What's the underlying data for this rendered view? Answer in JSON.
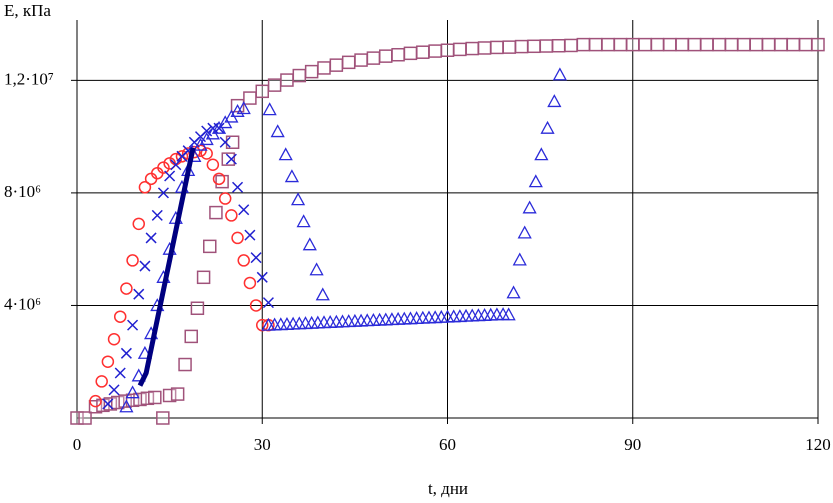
{
  "chart_data": {
    "type": "scatter",
    "x_label": "t, дни",
    "y_label": "E, кПа",
    "xlim": [
      0,
      120
    ],
    "xticks": [
      0,
      30,
      60,
      90,
      120
    ],
    "ylim": [
      0,
      14500000
    ],
    "yticks": [
      {
        "value": 4000000,
        "label": "4·10⁶"
      },
      {
        "value": 8000000,
        "label": "8·10⁶"
      },
      {
        "value": 12000000,
        "label": "1,2·10⁷"
      }
    ],
    "grid": true,
    "series": [
      {
        "marker": "square",
        "color": "#a0527a",
        "x": [
          0,
          1.3,
          3,
          4.2,
          5.4,
          6.6,
          7.8,
          9,
          10.2,
          11.4,
          12.6,
          13.9,
          15,
          16.3,
          17.5,
          18.5,
          19.5,
          20.5,
          21.5,
          22.5,
          23.5,
          24.5,
          25.2,
          26,
          28,
          30,
          32,
          34,
          36,
          38,
          40,
          42,
          44,
          46,
          48,
          50,
          52,
          54,
          56,
          58,
          60,
          62,
          64,
          66,
          68,
          70,
          72,
          74,
          76,
          78,
          80,
          82,
          84,
          86,
          88,
          90,
          92,
          94,
          96,
          98,
          100,
          102,
          104,
          106,
          108,
          110,
          112,
          114,
          116,
          118,
          120
        ],
        "values": [
          0,
          0,
          400000,
          450000,
          500000,
          550000,
          600000,
          630000,
          660000,
          700000,
          730000,
          0,
          800000,
          850000,
          1900000,
          2900000,
          3900000,
          5000000,
          6100000,
          7300000,
          8400000,
          9200000,
          9800000,
          11100000,
          11370000,
          11610000,
          11830000,
          12010000,
          12170000,
          12310000,
          12440000,
          12540000,
          12640000,
          12720000,
          12790000,
          12860000,
          12910000,
          12960000,
          13000000,
          13040000,
          13070000,
          13100000,
          13130000,
          13150000,
          13170000,
          13180000,
          13200000,
          13210000,
          13220000,
          13230000,
          13240000,
          13270000,
          13270000,
          13270000,
          13270000,
          13270000,
          13270000,
          13270000,
          13270000,
          13270000,
          13270000,
          13270000,
          13270000,
          13270000,
          13270000,
          13270000,
          13270000,
          13270000,
          13270000,
          13270000,
          13270000
        ]
      },
      {
        "marker": "circle",
        "color": "#ff3030",
        "x": [
          3,
          4,
          5,
          6,
          7,
          8,
          9,
          10,
          11,
          12,
          13,
          14,
          15,
          16,
          17,
          18,
          19,
          20,
          21,
          22,
          23,
          24,
          25,
          26,
          27,
          28,
          29,
          30,
          31
        ],
        "values": [
          600000,
          1300000,
          2000000,
          2800000,
          3600000,
          4600000,
          5600000,
          6900000,
          8200000,
          8500000,
          8700000,
          8900000,
          9050000,
          9200000,
          9300000,
          9400000,
          9450000,
          9500000,
          9400000,
          9000000,
          8500000,
          7800000,
          7200000,
          6400000,
          5600000,
          4800000,
          4000000,
          3300000,
          3300000
        ]
      },
      {
        "marker": "x",
        "color": "#2020d0",
        "x": [
          5,
          6,
          7,
          8,
          9,
          10,
          11,
          12,
          13,
          14,
          15,
          16,
          17,
          18,
          19,
          20,
          21,
          22,
          23,
          24,
          25,
          26,
          27,
          28,
          29,
          30,
          31
        ],
        "values": [
          500000,
          1000000,
          1600000,
          2300000,
          3300000,
          4400000,
          5400000,
          6400000,
          7200000,
          8000000,
          8600000,
          9000000,
          9300000,
          9500000,
          9800000,
          10000000,
          10200000,
          10300000,
          10300000,
          9800000,
          9200000,
          8200000,
          7400000,
          6500000,
          5700000,
          5000000,
          4100000
        ]
      },
      {
        "marker": "triangle",
        "color": "#2b2bd9",
        "x": [
          8,
          9,
          10,
          11,
          12,
          13,
          14,
          15,
          16,
          17,
          18,
          19,
          20,
          21,
          22,
          23,
          24,
          25,
          26,
          27,
          31.2,
          32.5,
          33.8,
          34.8,
          35.8,
          36.7,
          37.7,
          38.8,
          39.8,
          31,
          32,
          33,
          34,
          35,
          36,
          37,
          38,
          39,
          40,
          41,
          42,
          43,
          44,
          45,
          46,
          47,
          48,
          49,
          50,
          51,
          52,
          53,
          54,
          55,
          56,
          57,
          58,
          59,
          60,
          61,
          62,
          63,
          64,
          65,
          66,
          67,
          68,
          69,
          69.9,
          70.7,
          71.7,
          72.5,
          73.3,
          74.3,
          75.2,
          76.2,
          77.3,
          78.2
        ],
        "values": [
          400000,
          900000,
          1500000,
          2300000,
          3000000,
          4000000,
          5000000,
          6000000,
          7100000,
          8200000,
          8800000,
          9300000,
          9700000,
          9900000,
          10100000,
          10300000,
          10500000,
          10700000,
          10900000,
          11000000,
          10960000,
          10180000,
          9360000,
          8580000,
          7760000,
          6980000,
          6160000,
          5270000,
          4380000,
          3300000,
          3310000,
          3320000,
          3330000,
          3340000,
          3350000,
          3360000,
          3370000,
          3380000,
          3390000,
          3400000,
          3410000,
          3420000,
          3430000,
          3440000,
          3450000,
          3460000,
          3470000,
          3480000,
          3490000,
          3500000,
          3510000,
          3520000,
          3530000,
          3540000,
          3550000,
          3560000,
          3570000,
          3580000,
          3590000,
          3600000,
          3610000,
          3620000,
          3630000,
          3640000,
          3650000,
          3660000,
          3670000,
          3680000,
          3670000,
          4450000,
          5620000,
          6580000,
          7470000,
          8400000,
          9360000,
          10300000,
          11250000,
          12200000
        ]
      },
      {
        "marker": "line",
        "color": "#000080",
        "x": [
          10.2,
          11.2,
          18.8
        ],
        "values": [
          1150000,
          1600000,
          9600000
        ]
      }
    ]
  }
}
